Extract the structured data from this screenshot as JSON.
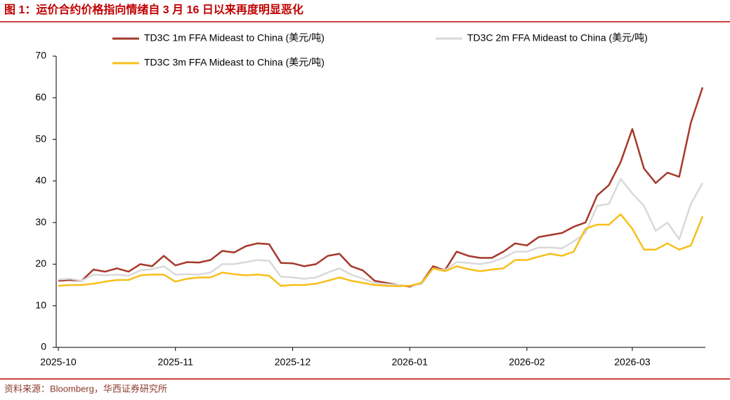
{
  "header": {
    "title": "图 1：运价合约价格指向情绪自 3 月 16 日以来再度明显恶化"
  },
  "chart_data": {
    "type": "line",
    "categories": [
      "2025-10",
      null,
      null,
      null,
      null,
      null,
      null,
      null,
      null,
      null,
      "2025-11",
      null,
      null,
      null,
      null,
      null,
      null,
      null,
      null,
      null,
      "2025-12",
      null,
      null,
      null,
      null,
      null,
      null,
      null,
      null,
      null,
      "2026-01",
      null,
      null,
      null,
      null,
      null,
      null,
      null,
      null,
      null,
      "2026-02",
      null,
      null,
      null,
      null,
      null,
      null,
      null,
      null,
      "2026-03",
      null,
      null,
      null,
      null,
      null,
      null
    ],
    "series": [
      {
        "name": "TD3C 1m FFA Mideast to China (美元/吨)",
        "color": "#a5392b",
        "values": [
          16,
          16.2,
          16,
          18.7,
          18.2,
          19,
          18.2,
          20,
          19.5,
          22,
          19.7,
          20.5,
          20.4,
          21,
          23.2,
          22.8,
          24.3,
          25,
          24.8,
          20.3,
          20.2,
          19.5,
          20,
          22,
          22.5,
          19.5,
          18.5,
          16,
          15.5,
          15,
          14.6,
          15.5,
          19.5,
          18.5,
          23,
          22,
          21.5,
          21.5,
          23,
          25,
          24.5,
          26.5,
          27,
          27.5,
          29,
          30,
          36.5,
          39,
          44.5,
          52.5,
          43,
          39.5,
          42,
          41,
          54,
          62.5
        ]
      },
      {
        "name": "TD3C 2m FFA Mideast to China (美元/吨)",
        "color": "#d9d9d9",
        "values": [
          16.3,
          16.5,
          16,
          17.5,
          17.3,
          17.5,
          17.2,
          18.5,
          18.8,
          19.5,
          17.5,
          17.6,
          17.5,
          18,
          20,
          20,
          20.5,
          21,
          20.8,
          17,
          16.8,
          16.5,
          16.8,
          18,
          19,
          17.5,
          16.5,
          15.5,
          15.2,
          15,
          14.8,
          15.2,
          19,
          18.5,
          20.5,
          20.3,
          20,
          20.5,
          21.5,
          23,
          23,
          24,
          24,
          23.8,
          25.5,
          27.5,
          34,
          34.5,
          40.5,
          37,
          34,
          28,
          30,
          26,
          34.5,
          39.5
        ]
      },
      {
        "name": "TD3C 3m FFA Mideast to China (美元/吨)",
        "color": "#f7bf1a",
        "values": [
          14.8,
          15,
          15,
          15.3,
          15.8,
          16.2,
          16.2,
          17.3,
          17.5,
          17.5,
          15.8,
          16.5,
          16.8,
          16.8,
          18,
          17.6,
          17.3,
          17.5,
          17.2,
          14.8,
          15,
          15,
          15.3,
          16,
          16.8,
          16,
          15.5,
          15,
          14.8,
          14.7,
          14.8,
          15.5,
          19,
          18.3,
          19.5,
          18.8,
          18.3,
          18.7,
          19,
          21,
          21,
          21.8,
          22.5,
          22,
          23,
          28.5,
          29.5,
          29.5,
          32,
          28.5,
          23.5,
          23.5,
          25,
          23.5,
          24.5,
          31.5
        ]
      }
    ],
    "ylim": [
      0,
      70
    ],
    "yticks": [
      0,
      10,
      20,
      30,
      40,
      50,
      60,
      70
    ],
    "grid": false
  },
  "footer": {
    "source": "资料来源：Bloomberg，华西证券研究所"
  }
}
